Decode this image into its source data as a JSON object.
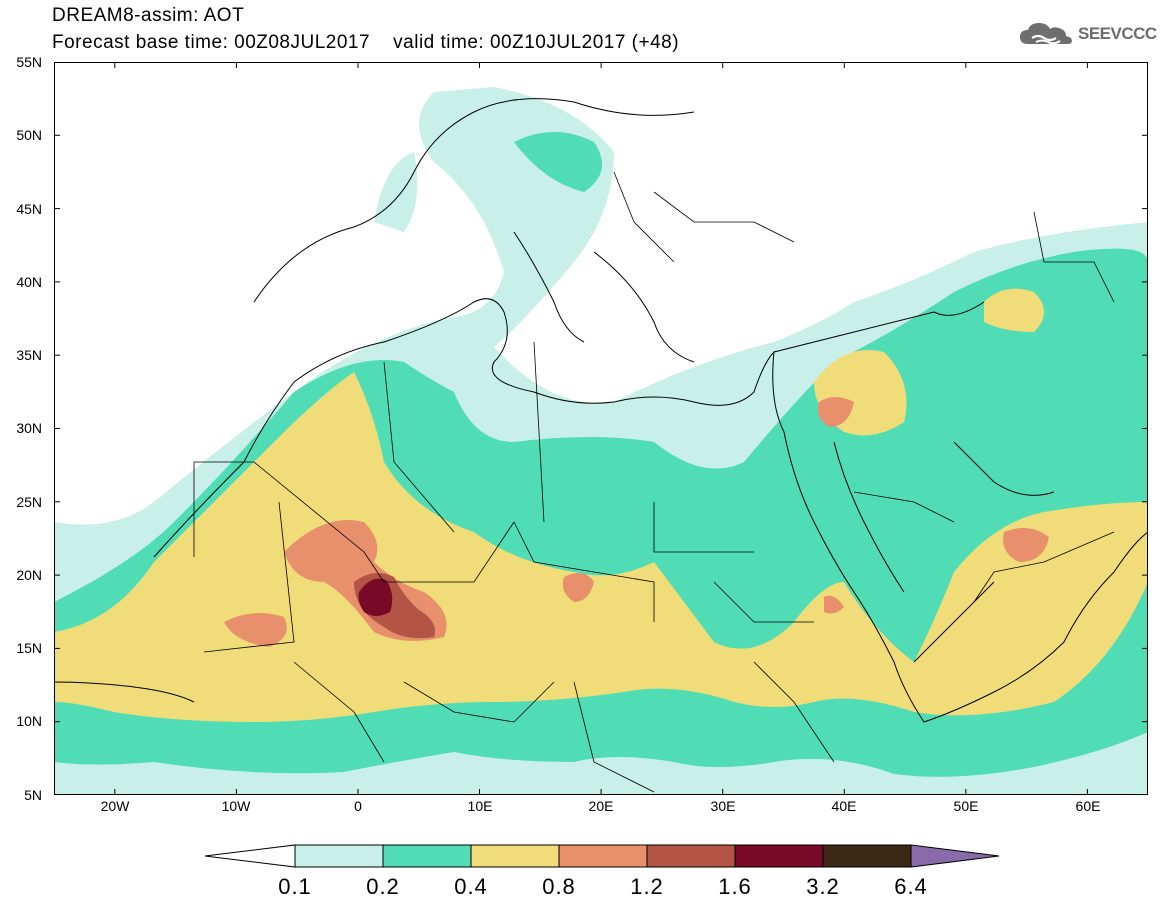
{
  "header": {
    "line1": "DREAM8-assim: AOT",
    "line2": "Forecast base time: 00Z08JUL2017    valid time: 00Z10JUL2017 (+48)"
  },
  "logo": {
    "text": "SEEVCCC",
    "icon": "cloud-logo-icon"
  },
  "map": {
    "lon_range": [
      -25,
      65
    ],
    "lat_range": [
      5,
      55
    ],
    "lat_ticks": [
      "55N",
      "50N",
      "45N",
      "40N",
      "35N",
      "30N",
      "25N",
      "20N",
      "15N",
      "10N",
      "5N"
    ],
    "lon_ticks": [
      "20W",
      "10W",
      "0",
      "10E",
      "20E",
      "30E",
      "40E",
      "50E",
      "60E"
    ],
    "quantity": "AOT"
  },
  "colorbar": {
    "levels": [
      "0.1",
      "0.2",
      "0.4",
      "0.8",
      "1.2",
      "1.6",
      "3.2",
      "6.4"
    ],
    "colors": [
      "#c8f0e8",
      "#50dcb4",
      "#f0dc78",
      "#e8906c",
      "#b45444",
      "#780a28",
      "#3c2814",
      "#8a6aaa"
    ],
    "under_color": "#ffffff",
    "over_color": "#8a6aaa"
  }
}
